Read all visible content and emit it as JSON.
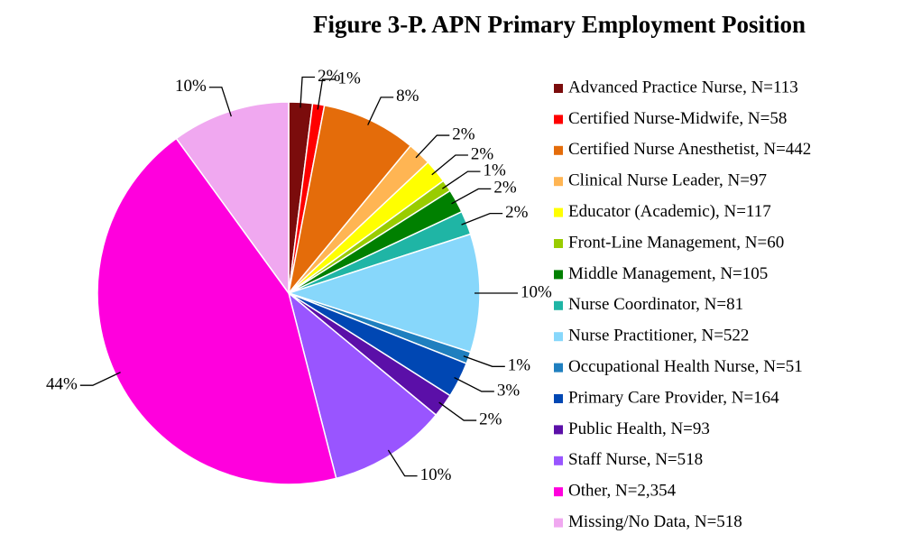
{
  "chart_data": {
    "type": "pie",
    "title": "Figure 3-P. APN Primary Employment Position",
    "categories": [
      "Advanced Practice Nurse, N=113",
      "Certified Nurse-Midwife, N=58",
      "Certified Nurse Anesthetist, N=442",
      "Clinical Nurse Leader, N=97",
      "Educator (Academic), N=117",
      "Front-Line Management, N=60",
      "Middle Management, N=105",
      "Nurse Coordinator, N=81",
      "Nurse Practitioner, N=522",
      "Occupational Health Nurse, N=51",
      "Primary Care Provider, N=164",
      "Public Health, N=93",
      "Staff Nurse, N=518",
      "Other, N=2,354",
      "Missing/No Data, N=518"
    ],
    "values": [
      2,
      1,
      8,
      2,
      2,
      1,
      2,
      2,
      10,
      1,
      3,
      2,
      10,
      44,
      10
    ],
    "value_labels": [
      "2%",
      "1%",
      "8%",
      "2%",
      "2%",
      "1%",
      "2%",
      "2%",
      "10%",
      "1%",
      "3%",
      "2%",
      "10%",
      "44%",
      "10%"
    ],
    "colors": [
      "#7b0c0c",
      "#ff0000",
      "#e46c0a",
      "#ffb553",
      "#ffff00",
      "#99cc00",
      "#008000",
      "#1fb5a5",
      "#87d7fb",
      "#1f7fbf",
      "#0047b3",
      "#5b0fa8",
      "#9955ff",
      "#ff00dd",
      "#f0a8f0"
    ],
    "legend": "right"
  }
}
